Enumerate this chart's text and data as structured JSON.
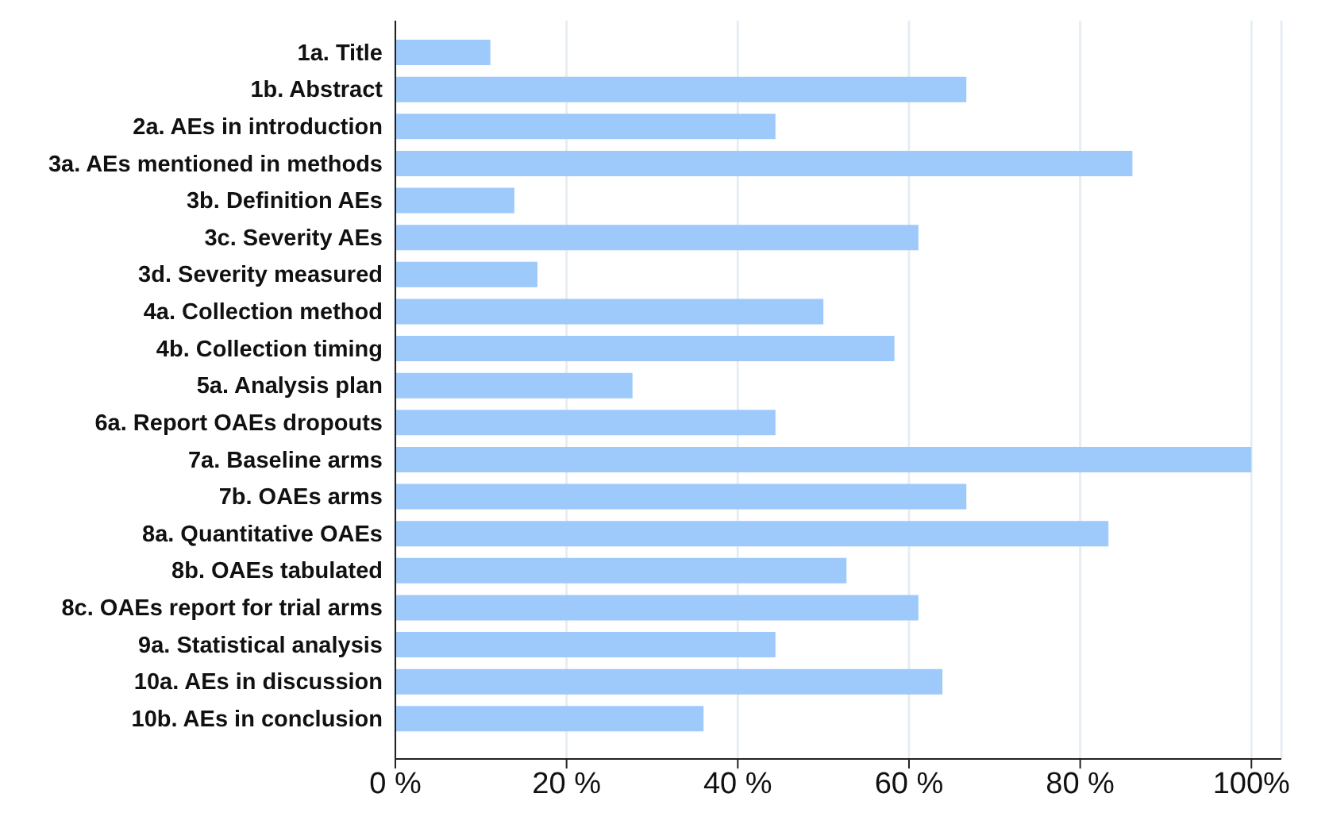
{
  "chart_data": {
    "type": "bar",
    "orientation": "horizontal",
    "categories": [
      "1a. Title",
      "1b. Abstract",
      "2a. AEs in introduction",
      "3a. AEs mentioned in methods",
      "3b. Definition AEs",
      "3c. Severity AEs",
      "3d. Severity measured",
      "4a. Collection method",
      "4b. Collection timing",
      "5a. Analysis plan",
      "6a. Report OAEs dropouts",
      "7a. Baseline arms",
      "7b. OAEs arms",
      "8a. Quantitative OAEs",
      "8b. OAEs tabulated",
      "8c. OAEs report for trial arms",
      "9a. Statistical analysis",
      "10a. AEs in discussion",
      "10b. AEs in conclusion"
    ],
    "values": [
      11.1,
      66.7,
      44.4,
      86.1,
      13.9,
      61.1,
      16.6,
      50.0,
      58.3,
      27.7,
      44.4,
      100,
      66.7,
      83.3,
      52.7,
      61.1,
      44.4,
      63.9,
      36.0
    ],
    "color": "#9ec9fb",
    "xlim": [
      0,
      103.5
    ],
    "xticks": [
      {
        "value": 0,
        "label": "0 %"
      },
      {
        "value": 20,
        "label": "20 %"
      },
      {
        "value": 40,
        "label": "40 %"
      },
      {
        "value": 60,
        "label": "60 %"
      },
      {
        "value": 80,
        "label": "80 %"
      },
      {
        "value": 100,
        "label": "100%"
      }
    ],
    "grid": "x"
  }
}
